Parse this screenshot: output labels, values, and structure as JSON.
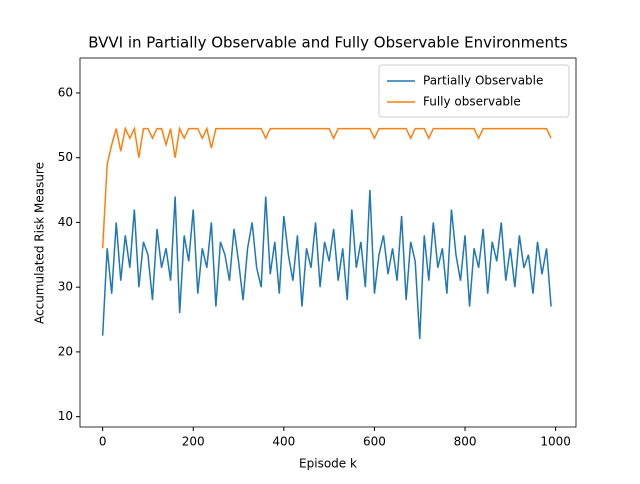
{
  "chart_data": {
    "type": "line",
    "title": "BVVI in Partially Observable and Fully Observable Environments",
    "x_label": "Episode k",
    "y_label": "Accumulated Risk Measure",
    "x": [
      0,
      10,
      20,
      30,
      40,
      50,
      60,
      70,
      80,
      90,
      100,
      110,
      120,
      130,
      140,
      150,
      160,
      170,
      180,
      190,
      200,
      210,
      220,
      230,
      240,
      250,
      260,
      270,
      280,
      290,
      300,
      310,
      320,
      330,
      340,
      350,
      360,
      370,
      380,
      390,
      400,
      410,
      420,
      430,
      440,
      450,
      460,
      470,
      480,
      490,
      500,
      510,
      520,
      530,
      540,
      550,
      560,
      570,
      580,
      590,
      600,
      610,
      620,
      630,
      640,
      650,
      660,
      670,
      680,
      690,
      700,
      710,
      720,
      730,
      740,
      750,
      760,
      770,
      780,
      790,
      800,
      810,
      820,
      830,
      840,
      850,
      860,
      870,
      880,
      890,
      900,
      910,
      920,
      930,
      940,
      950,
      960,
      970,
      980,
      990
    ],
    "series": [
      {
        "name": "Partially Observable",
        "color": "#1f77b4",
        "values": [
          22.5,
          36,
          29,
          40,
          31,
          38,
          33,
          42,
          30,
          37,
          35,
          28,
          39,
          33,
          36,
          31,
          44,
          26,
          38,
          34,
          42,
          29,
          36,
          33,
          40,
          27,
          37,
          35,
          31,
          39,
          34,
          28,
          36,
          40,
          33,
          30,
          44,
          32,
          37,
          29,
          41,
          35,
          31,
          38,
          27,
          36,
          33,
          40,
          30,
          37,
          34,
          39,
          31,
          36,
          28,
          42,
          33,
          37,
          30,
          45,
          29,
          35,
          38,
          32,
          36,
          31,
          41,
          28,
          37,
          34,
          22,
          38,
          31,
          40,
          33,
          36,
          29,
          42,
          35,
          31,
          38,
          27,
          36,
          33,
          39,
          29,
          37,
          34,
          40,
          31,
          36,
          30,
          38,
          33,
          35,
          29,
          37,
          32,
          36,
          27
        ]
      },
      {
        "name": "Fully observable",
        "color": "#ff7f0e",
        "values": [
          36,
          49,
          52,
          54.5,
          51,
          54.5,
          53,
          54.5,
          50,
          54.5,
          54.5,
          53,
          54.5,
          54.5,
          52,
          54.5,
          50,
          54.5,
          53,
          54.5,
          54.5,
          54.5,
          53,
          54.5,
          51.5,
          54.5,
          54.5,
          54.5,
          54.5,
          54.5,
          54.5,
          54.5,
          54.5,
          54.5,
          54.5,
          54.5,
          53,
          54.5,
          54.5,
          54.5,
          54.5,
          54.5,
          54.5,
          54.5,
          54.5,
          54.5,
          54.5,
          54.5,
          54.5,
          54.5,
          54.5,
          53,
          54.5,
          54.5,
          54.5,
          54.5,
          54.5,
          54.5,
          54.5,
          54.5,
          53,
          54.5,
          54.5,
          54.5,
          54.5,
          54.5,
          54.5,
          54.5,
          53,
          54.5,
          54.5,
          54.5,
          53,
          54.5,
          54.5,
          54.5,
          54.5,
          54.5,
          54.5,
          54.5,
          54.5,
          54.5,
          54.5,
          53,
          54.5,
          54.5,
          54.5,
          54.5,
          54.5,
          54.5,
          54.5,
          54.5,
          54.5,
          54.5,
          54.5,
          54.5,
          54.5,
          54.5,
          54.5,
          53
        ]
      }
    ],
    "xlim": [
      -50,
      1045
    ],
    "ylim": [
      8.4,
      65.4
    ],
    "xticks": [
      0,
      200,
      400,
      600,
      800,
      1000
    ],
    "yticks": [
      10,
      20,
      30,
      40,
      50,
      60
    ],
    "legend": "upper right"
  }
}
